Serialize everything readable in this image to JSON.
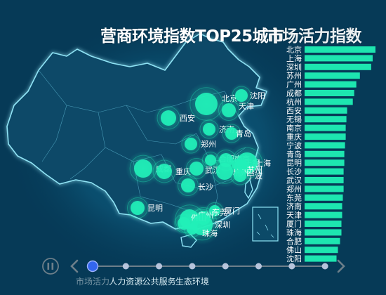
{
  "title": "营商环境指数TOP25城市 ",
  "title_overlay": "市场活力指数",
  "colors": {
    "background": "#063a57",
    "bar": "#1de6b0",
    "bubble": "#22f0b8",
    "land": "#0c4a68",
    "border": "#7fd6ec",
    "timeline": "#6d7f8a",
    "timeline_active": "#3366ee"
  },
  "icons": {
    "play": "pause-icon",
    "prev": "chevron-left-icon",
    "next": "chevron-right-icon"
  },
  "timeline": {
    "items": [
      "市场活力",
      "人力资源",
      "公共服务",
      "生态环境",
      "",
      "",
      "",
      ""
    ],
    "active_index": 0
  },
  "chart_data": [
    {
      "type": "bar",
      "orientation": "horizontal",
      "categories": [
        "北京",
        "上海",
        "深圳",
        "苏州",
        "广州",
        "成都",
        "杭州",
        "西安",
        "无锡",
        "南京",
        "重庆",
        "宁波",
        "青岛",
        "昆明",
        "长沙",
        "武汉",
        "郑州",
        "东莞",
        "济南",
        "天津",
        "厦门",
        "珠海",
        "合肥",
        "佛山",
        "沈阳"
      ],
      "values": [
        100,
        96,
        94,
        78,
        73,
        70,
        68,
        60,
        59,
        58,
        58,
        57,
        56,
        56,
        55,
        55,
        55,
        54,
        53,
        53,
        52,
        52,
        50,
        47,
        45
      ]
    },
    {
      "type": "scatter",
      "map": "china",
      "points": [
        {
          "city": "北京",
          "size": 16
        },
        {
          "city": "天津",
          "size": 10
        },
        {
          "city": "沈阳",
          "size": 9
        },
        {
          "city": "西安",
          "size": 11
        },
        {
          "city": "济南",
          "size": 9
        },
        {
          "city": "青岛",
          "size": 9
        },
        {
          "city": "郑州",
          "size": 9
        },
        {
          "city": "合肥",
          "size": 8
        },
        {
          "city": "南京",
          "size": 10
        },
        {
          "city": "无锡",
          "size": 8
        },
        {
          "city": "上海",
          "size": 15
        },
        {
          "city": "苏州",
          "size": 11
        },
        {
          "city": "成都",
          "size": 13
        },
        {
          "city": "重庆",
          "size": 11
        },
        {
          "city": "武汉",
          "size": 10
        },
        {
          "city": "杭州",
          "size": 12
        },
        {
          "city": "宁波",
          "size": 9
        },
        {
          "city": "长沙",
          "size": 10
        },
        {
          "city": "昆明",
          "size": 10
        },
        {
          "city": "厦门",
          "size": 8
        },
        {
          "city": "东莞",
          "size": 10
        },
        {
          "city": "广州",
          "size": 14
        },
        {
          "city": "佛山",
          "size": 9
        },
        {
          "city": "深圳",
          "size": 15
        },
        {
          "city": "珠海",
          "size": 8
        }
      ]
    }
  ]
}
